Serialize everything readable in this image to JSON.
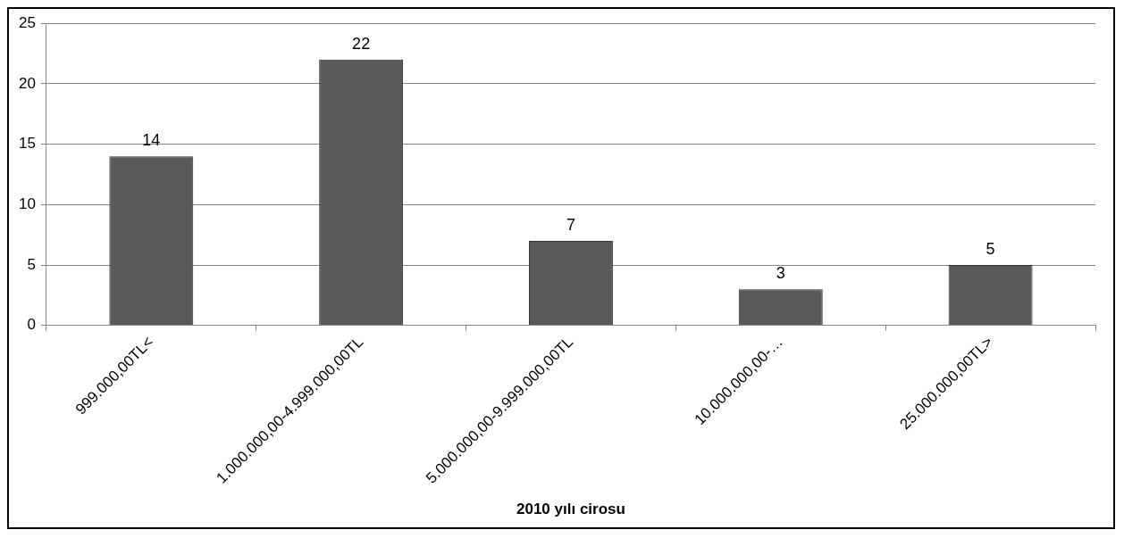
{
  "chart_data": {
    "type": "bar",
    "xlabel": "2010 yılı cirosu",
    "categories": [
      "999.000,00TL<",
      "1.000.000,00-4.999.000,00TL",
      "5.000.000,00-9.999.000,00TL",
      "10.000.000,00-…",
      "25.000.000,00TL>"
    ],
    "values": [
      14,
      22,
      7,
      3,
      5
    ],
    "color": "#595959",
    "ylim": [
      0,
      25
    ],
    "yticks": [
      0,
      5,
      10,
      15,
      20,
      25
    ],
    "grid": "y",
    "data_labels": true,
    "legend": false
  }
}
